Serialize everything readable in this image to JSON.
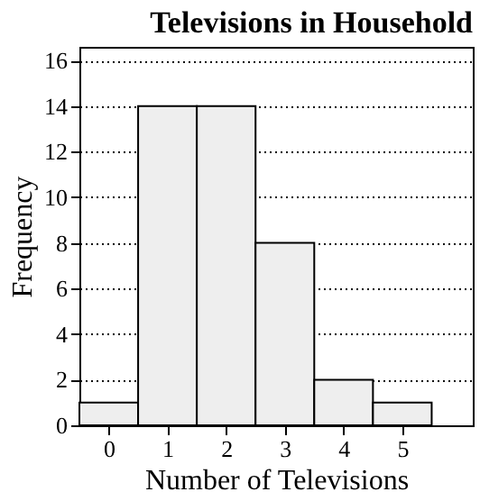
{
  "chart_data": {
    "type": "histogram",
    "title": "Televisions in Household",
    "xlabel": "Number of Televisions",
    "ylabel": "Frequency",
    "bins": [
      -0.5,
      0.5,
      1.5,
      2.5,
      3.5,
      4.5,
      5.5
    ],
    "values": [
      1,
      14,
      14,
      8,
      2,
      1
    ],
    "color": "#eeeeee",
    "xlim": [
      -0.5,
      6.2
    ],
    "xticks": [
      0,
      1,
      2,
      3,
      4,
      5
    ],
    "ylim": [
      0,
      16.6
    ],
    "yticks": [
      0,
      2,
      4,
      6,
      8,
      10,
      12,
      14,
      16
    ],
    "grid": "y",
    "line_style": "dotted"
  }
}
